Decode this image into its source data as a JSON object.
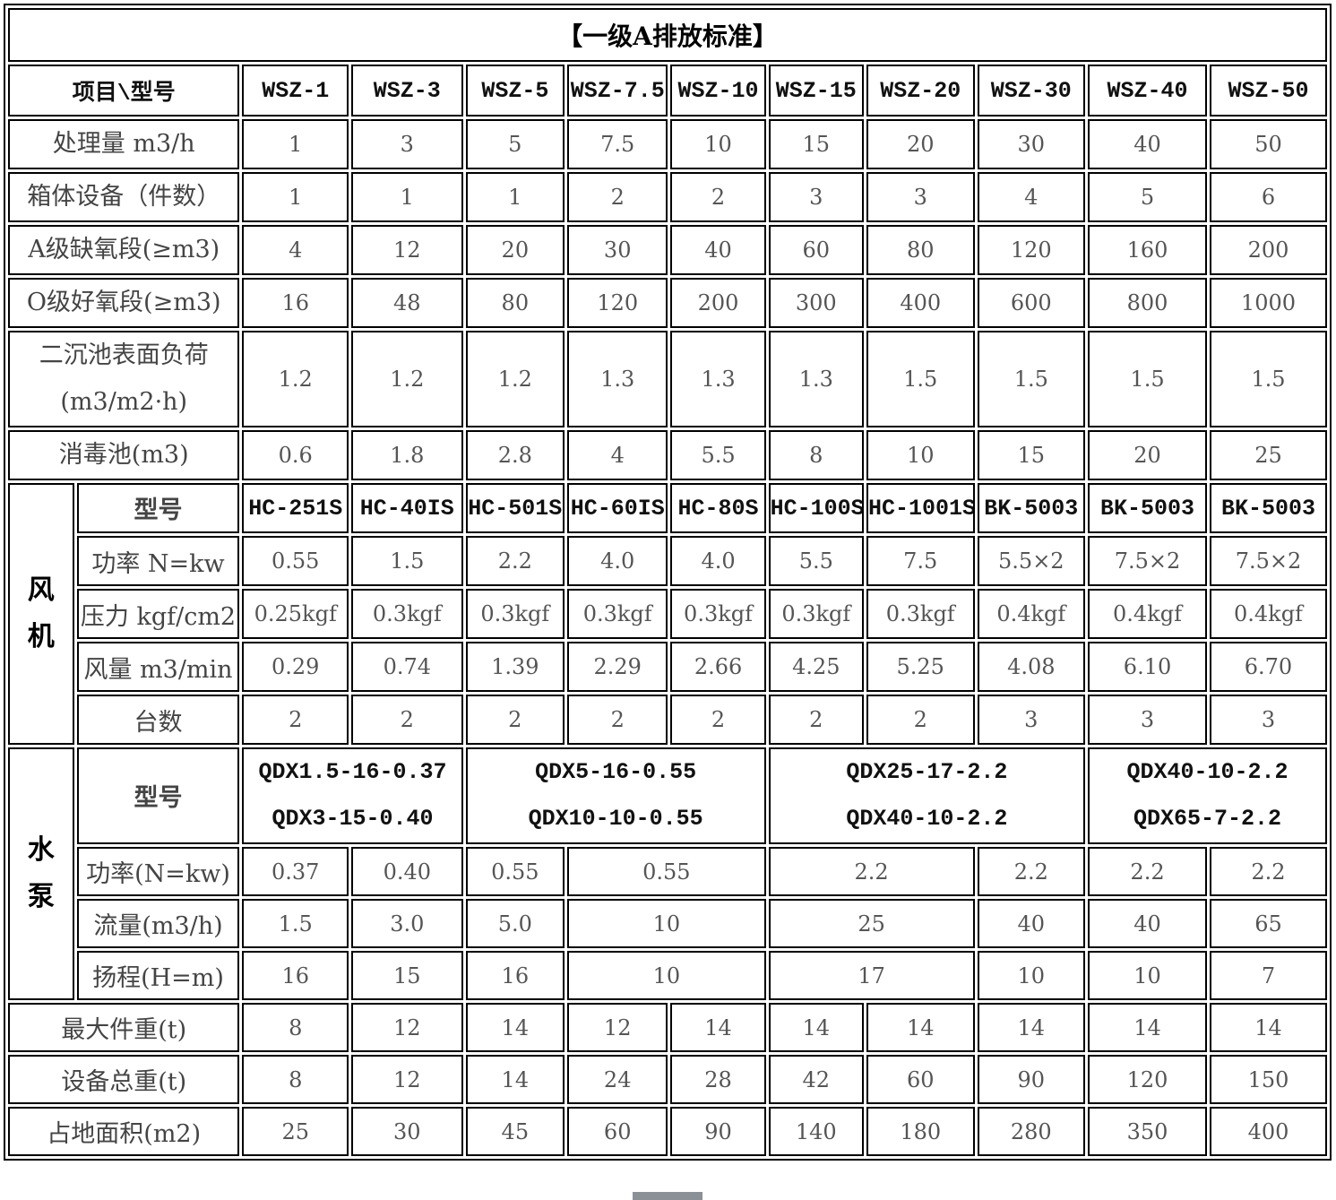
{
  "title": "【一级A排放标准】",
  "header": {
    "label": "项目\\型号",
    "models": [
      "WSZ-1",
      "WSZ-3",
      "WSZ-5",
      "WSZ-7.5",
      "WSZ-10",
      "WSZ-15",
      "WSZ-20",
      "WSZ-30",
      "WSZ-40",
      "WSZ-50"
    ]
  },
  "general_rows": [
    {
      "label": "处理量 m3/h",
      "values": [
        "1",
        "3",
        "5",
        "7.5",
        "10",
        "15",
        "20",
        "30",
        "40",
        "50"
      ]
    },
    {
      "label": "箱体设备（件数）",
      "values": [
        "1",
        "1",
        "1",
        "2",
        "2",
        "3",
        "3",
        "4",
        "5",
        "6"
      ]
    },
    {
      "label": "A级缺氧段(≥m3)",
      "values": [
        "4",
        "12",
        "20",
        "30",
        "40",
        "60",
        "80",
        "120",
        "160",
        "200"
      ]
    },
    {
      "label": "O级好氧段(≥m3)",
      "values": [
        "16",
        "48",
        "80",
        "120",
        "200",
        "300",
        "400",
        "600",
        "800",
        "1000"
      ]
    },
    {
      "label": "二沉池表面负荷",
      "label2": "(m3/m2·h)",
      "values": [
        "1.2",
        "1.2",
        "1.2",
        "1.3",
        "1.3",
        "1.3",
        "1.5",
        "1.5",
        "1.5",
        "1.5"
      ]
    },
    {
      "label": "消毒池(m3)",
      "values": [
        "0.6",
        "1.8",
        "2.8",
        "4",
        "5.5",
        "8",
        "10",
        "15",
        "20",
        "25"
      ]
    }
  ],
  "fan": {
    "group": [
      "风",
      "机"
    ],
    "rows": [
      {
        "label": "型号",
        "values": [
          "HC-251S",
          "HC-40IS",
          "HC-501S",
          "HC-60IS",
          "HC-80S",
          "HC-100S",
          "HC-1001S",
          "BK-5003",
          "BK-5003",
          "BK-5003"
        ]
      },
      {
        "label": "功率 N=kw",
        "values": [
          "0.55",
          "1.5",
          "2.2",
          "4.0",
          "4.0",
          "5.5",
          "7.5",
          "5.5×2",
          "7.5×2",
          "7.5×2"
        ]
      },
      {
        "label": "压力 kgf/cm2",
        "values": [
          "0.25kgf",
          "0.3kgf",
          "0.3kgf",
          "0.3kgf",
          "0.3kgf",
          "0.3kgf",
          "0.3kgf",
          "0.4kgf",
          "0.4kgf",
          "0.4kgf"
        ]
      },
      {
        "label": "风量 m3/min",
        "values": [
          "0.29",
          "0.74",
          "1.39",
          "2.29",
          "2.66",
          "4.25",
          "5.25",
          "4.08",
          "6.10",
          "6.70"
        ]
      },
      {
        "label": "台数",
        "values": [
          "2",
          "2",
          "2",
          "2",
          "2",
          "2",
          "2",
          "3",
          "3",
          "3"
        ]
      }
    ]
  },
  "pump": {
    "group": [
      "水",
      "泵"
    ],
    "model": {
      "label": "型号",
      "values": [
        [
          "QDX1.5-16-0.37",
          "QDX3-15-0.40"
        ],
        [
          "QDX5-16-0.55",
          "QDX10-10-0.55"
        ],
        [
          "QDX25-17-2.2",
          "QDX40-10-2.2"
        ],
        [
          "QDX40-10-2.2",
          "QDX65-7-2.2"
        ]
      ]
    },
    "rows": [
      {
        "label": "功率(N=kw)",
        "values": [
          "0.37",
          "0.40",
          "0.55",
          "0.55",
          "2.2",
          "2.2",
          "2.2",
          "2.2"
        ]
      },
      {
        "label": "流量(m3/h)",
        "values": [
          "1.5",
          "3.0",
          "5.0",
          "10",
          "25",
          "40",
          "40",
          "65"
        ]
      },
      {
        "label": "扬程(H=m)",
        "values": [
          "16",
          "15",
          "16",
          "10",
          "17",
          "10",
          "10",
          "7"
        ]
      }
    ]
  },
  "bottom_rows": [
    {
      "label": "最大件重(t)",
      "values": [
        "8",
        "12",
        "14",
        "12",
        "14",
        "14",
        "14",
        "14",
        "14",
        "14"
      ]
    },
    {
      "label": "设备总重(t)",
      "values": [
        "8",
        "12",
        "14",
        "24",
        "28",
        "42",
        "60",
        "90",
        "120",
        "150"
      ]
    },
    {
      "label": "占地面积(m2)",
      "values": [
        "25",
        "30",
        "45",
        "60",
        "90",
        "140",
        "180",
        "280",
        "350",
        "400"
      ]
    }
  ]
}
